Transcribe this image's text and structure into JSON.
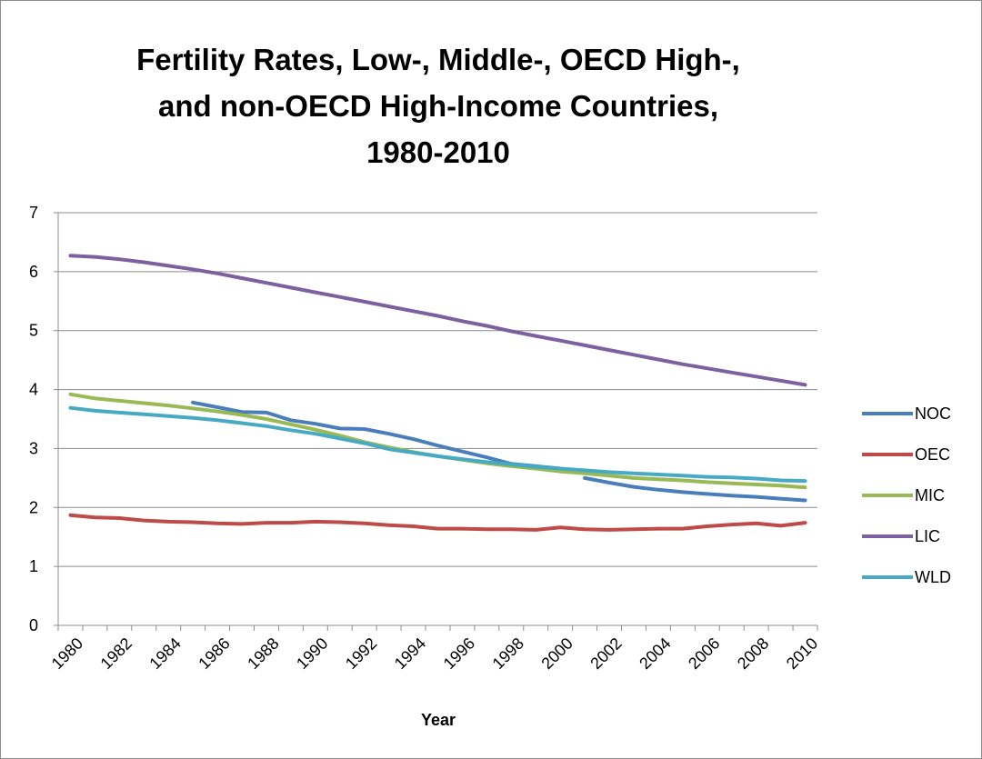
{
  "chart_data": {
    "type": "line",
    "title": [
      "Fertility Rates, Low-, Middle-, OECD High-,",
      "and non-OECD High-Income Countries,",
      "1980-2010"
    ],
    "xlabel": "Year",
    "ylabel": "",
    "ylim": [
      0,
      7
    ],
    "y_ticks": [
      "0",
      "1",
      "2",
      "3",
      "4",
      "5",
      "6",
      "7"
    ],
    "x_tick_labels": [
      "1980",
      "1982",
      "1984",
      "1986",
      "1988",
      "1990",
      "1992",
      "1994",
      "1996",
      "1998",
      "2000",
      "2002",
      "2004",
      "2006",
      "2008",
      "2010"
    ],
    "grid": "horizontal",
    "legend_position": "right",
    "x": [
      1980,
      1981,
      1982,
      1983,
      1984,
      1985,
      1986,
      1987,
      1988,
      1989,
      1990,
      1991,
      1992,
      1993,
      1994,
      1995,
      1996,
      1997,
      1998,
      1999,
      2000,
      2001,
      2002,
      2003,
      2004,
      2005,
      2006,
      2007,
      2008,
      2009,
      2010
    ],
    "series": [
      {
        "name": "NOC",
        "color": "#4a7ebb",
        "segments": [
          {
            "x": [
              1985,
              1986,
              1987,
              1988,
              1989,
              1990,
              1991,
              1992,
              1993,
              1994,
              1995,
              1996,
              1997,
              1998,
              1999,
              2000
            ],
            "values": [
              3.78,
              3.7,
              3.62,
              3.61,
              3.48,
              3.42,
              3.34,
              3.33,
              3.25,
              3.16,
              3.05,
              2.95,
              2.85,
              2.74,
              2.7,
              2.66
            ]
          },
          {
            "x": [
              2001,
              2002,
              2003,
              2004,
              2005,
              2006,
              2007,
              2008,
              2009,
              2010
            ],
            "values": [
              2.5,
              2.42,
              2.35,
              2.3,
              2.26,
              2.23,
              2.2,
              2.18,
              2.15,
              2.12
            ]
          }
        ]
      },
      {
        "name": "OEC",
        "color": "#be4b48",
        "values": [
          1.87,
          1.83,
          1.82,
          1.78,
          1.76,
          1.75,
          1.73,
          1.72,
          1.74,
          1.74,
          1.76,
          1.75,
          1.73,
          1.7,
          1.68,
          1.64,
          1.64,
          1.63,
          1.63,
          1.62,
          1.66,
          1.63,
          1.62,
          1.63,
          1.64,
          1.64,
          1.68,
          1.71,
          1.73,
          1.69,
          1.74
        ]
      },
      {
        "name": "MIC",
        "color": "#98b954",
        "values": [
          3.92,
          3.85,
          3.81,
          3.77,
          3.73,
          3.68,
          3.63,
          3.57,
          3.5,
          3.41,
          3.32,
          3.22,
          3.11,
          3.02,
          2.94,
          2.87,
          2.81,
          2.75,
          2.7,
          2.66,
          2.61,
          2.58,
          2.54,
          2.5,
          2.48,
          2.46,
          2.43,
          2.41,
          2.39,
          2.37,
          2.34
        ]
      },
      {
        "name": "LIC",
        "color": "#7d60a0",
        "values": [
          6.27,
          6.25,
          6.21,
          6.16,
          6.1,
          6.04,
          5.97,
          5.89,
          5.81,
          5.73,
          5.65,
          5.57,
          5.49,
          5.41,
          5.33,
          5.25,
          5.16,
          5.08,
          4.99,
          4.91,
          4.83,
          4.75,
          4.67,
          4.59,
          4.51,
          4.43,
          4.36,
          4.29,
          4.22,
          4.15,
          4.08
        ]
      },
      {
        "name": "WLD",
        "color": "#46aac5",
        "values": [
          3.69,
          3.64,
          3.61,
          3.58,
          3.55,
          3.52,
          3.48,
          3.43,
          3.38,
          3.31,
          3.25,
          3.17,
          3.09,
          2.99,
          2.93,
          2.87,
          2.82,
          2.77,
          2.73,
          2.69,
          2.66,
          2.63,
          2.6,
          2.58,
          2.56,
          2.54,
          2.52,
          2.51,
          2.49,
          2.46,
          2.45
        ]
      }
    ]
  }
}
